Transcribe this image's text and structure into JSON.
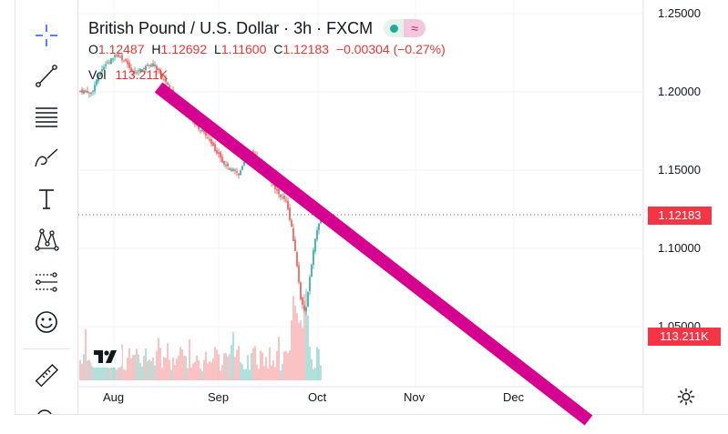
{
  "symbol": {
    "title": "British Pound / U.S. Dollar · 3h · FXCM",
    "wave_glyph": "≈"
  },
  "ohlc": {
    "open_label": "O",
    "open": "1.12487",
    "high_label": "H",
    "high": "1.12692",
    "low_label": "L",
    "low": "1.11600",
    "close_label": "C",
    "close": "1.12183",
    "change": "−0.00304 (−0.27%)"
  },
  "volume": {
    "label": "Vol",
    "value": "113.211K"
  },
  "y_axis": {
    "ticks": [
      "1.25000",
      "1.20000",
      "1.15000",
      "1.10000",
      "1.05000"
    ]
  },
  "x_axis": {
    "ticks": [
      "Aug",
      "Sep",
      "Oct",
      "Nov",
      "Dec"
    ]
  },
  "price_badge": "1.12183",
  "volume_badge": "113.211K",
  "colors": {
    "up": "#26a69a",
    "down": "#ef5350",
    "trendline": "#d5008f",
    "accent": "#2962ff"
  },
  "toolbar": {
    "tools": [
      "crosshair-icon",
      "trendline-icon",
      "fib-lines-icon",
      "brush-icon",
      "text-icon",
      "pattern-icon",
      "forecast-icon",
      "emoji-icon",
      "ruler-icon",
      "zoom-icon"
    ]
  }
}
